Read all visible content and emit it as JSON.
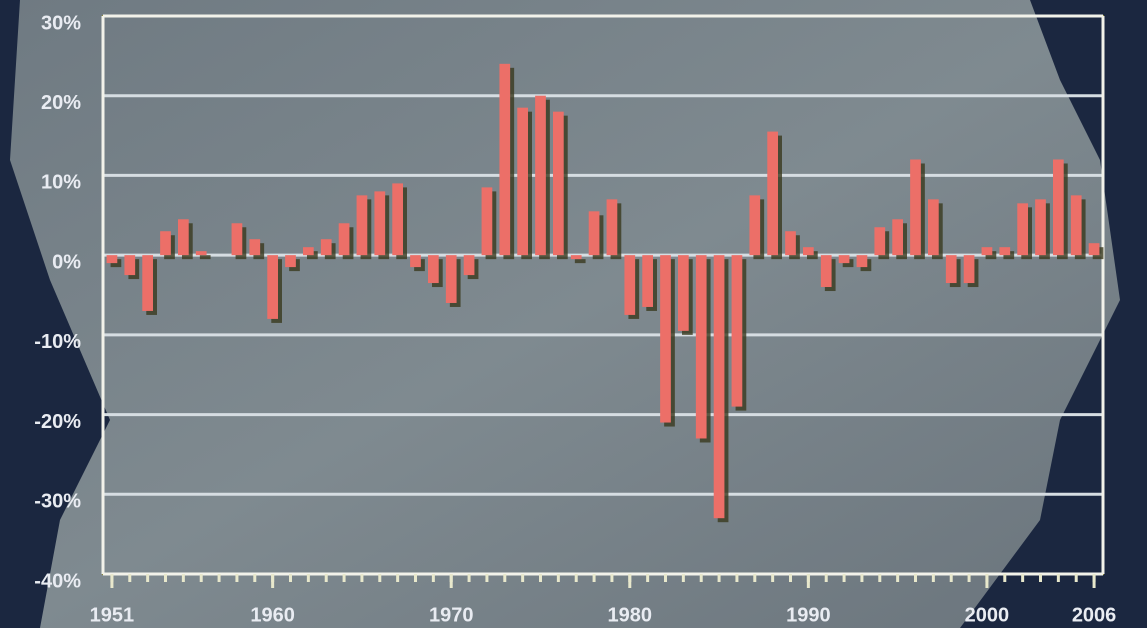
{
  "chart_data": {
    "type": "bar",
    "x": [
      1951,
      1952,
      1953,
      1954,
      1955,
      1956,
      1957,
      1958,
      1959,
      1960,
      1961,
      1962,
      1963,
      1964,
      1965,
      1966,
      1967,
      1968,
      1969,
      1970,
      1971,
      1972,
      1973,
      1974,
      1975,
      1976,
      1977,
      1978,
      1979,
      1980,
      1981,
      1982,
      1983,
      1984,
      1985,
      1986,
      1987,
      1988,
      1989,
      1990,
      1991,
      1992,
      1993,
      1994,
      1995,
      1996,
      1997,
      1998,
      1999,
      2000,
      2001,
      2002,
      2003,
      2004,
      2005,
      2006
    ],
    "values": [
      -1,
      -2.5,
      -7,
      3,
      4.5,
      0.5,
      0,
      4,
      2,
      -8,
      -1.5,
      1,
      2,
      4,
      7.5,
      8,
      9,
      -1.5,
      -3.5,
      -6,
      -2.5,
      8.5,
      24,
      18.5,
      20,
      18,
      -0.5,
      5.5,
      7,
      -7.5,
      -6.5,
      -21,
      -9.5,
      -23,
      -33,
      -19,
      7.5,
      15.5,
      3,
      1,
      -4,
      -1,
      -1.5,
      3.5,
      4.5,
      12,
      7,
      -3.5,
      -3.5,
      1,
      1,
      6.5,
      7,
      12,
      7.5,
      1.5
    ],
    "color": "#ec6f68",
    "xlim": [
      1950.5,
      2006.5
    ],
    "xticks": [
      1951,
      1960,
      1970,
      1980,
      1990,
      2000,
      2006
    ],
    "ylim": [
      -40,
      30
    ],
    "yticks": [
      {
        "value": -40,
        "label": "-40%"
      },
      {
        "value": -30,
        "label": "-30%"
      },
      {
        "value": -20,
        "label": "-20%"
      },
      {
        "value": -10,
        "label": "-10%"
      },
      {
        "value": 0,
        "label": "0%"
      },
      {
        "value": 10,
        "label": "10%"
      },
      {
        "value": 20,
        "label": "20%"
      },
      {
        "value": 30,
        "label": "30%"
      }
    ],
    "grid": true
  }
}
